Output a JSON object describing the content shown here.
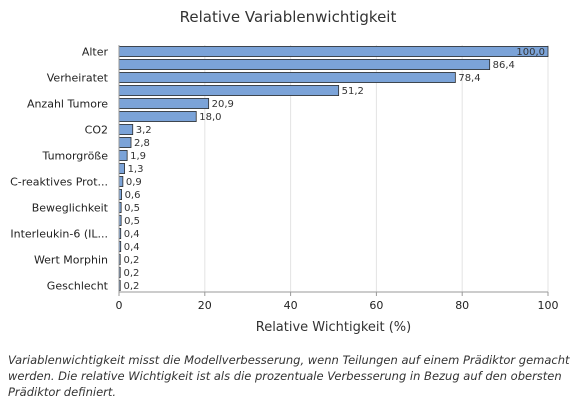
{
  "chart_data": {
    "type": "bar",
    "orientation": "horizontal",
    "title": "Relative Variablenwichtigkeit",
    "xlabel": "Relative Wichtigkeit (%)",
    "ylabel": "",
    "xlim": [
      0,
      100
    ],
    "xticks": [
      0,
      20,
      40,
      60,
      80,
      100
    ],
    "grid": "vertical",
    "bar_color": "#7ba3d8",
    "bar_stroke": "#2b2b2b",
    "categories": [
      "Alter",
      "",
      "Verheiratet",
      "",
      "Anzahl Tumore",
      "",
      "CO2",
      "",
      "Tumorgröße",
      "",
      "C-reaktives Prot...",
      "",
      "Beweglichkeit",
      "",
      "Interleukin-6 (IL...",
      "",
      "Wert Morphin",
      "",
      "Geschlecht"
    ],
    "values": [
      100.0,
      86.4,
      78.4,
      51.2,
      20.9,
      18.0,
      3.2,
      2.8,
      1.9,
      1.3,
      0.9,
      0.6,
      0.5,
      0.5,
      0.4,
      0.4,
      0.2,
      0.2,
      0.2
    ],
    "value_labels": [
      "100,0",
      "86,4",
      "78,4",
      "51,2",
      "20,9",
      "18,0",
      "3,2",
      "2,8",
      "1,9",
      "1,3",
      "0,9",
      "0,6",
      "0,5",
      "0,5",
      "0,4",
      "0,4",
      "0,2",
      "0,2",
      "0,2"
    ]
  },
  "caption": "Variablenwichtigkeit misst die Modellverbesserung, wenn Teilungen auf einem Prädiktor gemacht werden. Die relative Wichtigkeit ist als die prozentuale Verbesserung in Bezug auf den obersten Prädiktor definiert."
}
